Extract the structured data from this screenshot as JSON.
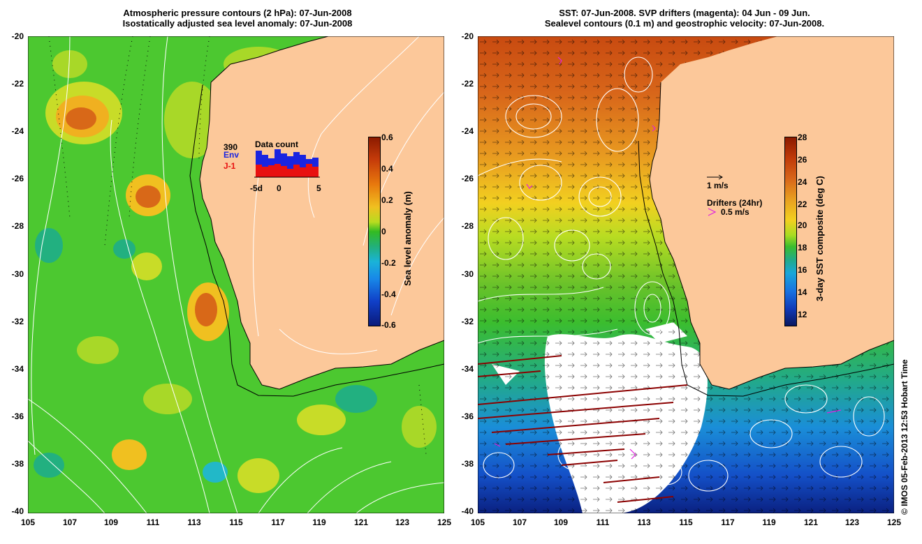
{
  "left_panel": {
    "title_line1": "Atmospheric pressure contours (2 hPa): 07-Jun-2008",
    "title_line2": "Isostatically adjusted sea level anomaly: 07-Jun-2008",
    "colorbar": {
      "title": "Sea level anomaly (m)",
      "tick_labels": [
        "0.6",
        "0.4",
        "0.2",
        "0",
        "-0.2",
        "-0.4",
        "-0.6"
      ]
    },
    "data_count": {
      "title": "Data count",
      "max_label": "390",
      "env_label": "Env",
      "j1_label": "J-1",
      "axis_left": "-5d",
      "axis_mid": "0",
      "axis_right": "5",
      "env_color": "#1a24e0",
      "j1_color": "#e81010"
    }
  },
  "right_panel": {
    "title_line1": "SST: 07-Jun-2008. SVP drifters (magenta): 04 Jun - 09 Jun.",
    "title_line2": "Sealevel contours (0.1 m) and geostrophic velocity: 07-Jun-2008.",
    "colorbar": {
      "title": "3-day SST composite (deg C)",
      "tick_labels": [
        "28",
        "26",
        "24",
        "22",
        "20",
        "18",
        "16",
        "14",
        "12"
      ]
    },
    "legend": {
      "velocity_label": "1 m/s",
      "drifters_label": "Drifters (24hr)",
      "drifter_speed_label": "0.5 m/s",
      "drifter_color": "#e020e0"
    }
  },
  "axes": {
    "lat_labels": [
      "-20",
      "-22",
      "-24",
      "-26",
      "-28",
      "-30",
      "-32",
      "-34",
      "-36",
      "-38",
      "-40"
    ],
    "lon_labels": [
      "105",
      "107",
      "109",
      "111",
      "113",
      "115",
      "117",
      "119",
      "121",
      "123",
      "125"
    ]
  },
  "land_color": "#fcc89a",
  "credit": "© IMOS 05-Feb-2013 12:53 Hobart Time"
}
